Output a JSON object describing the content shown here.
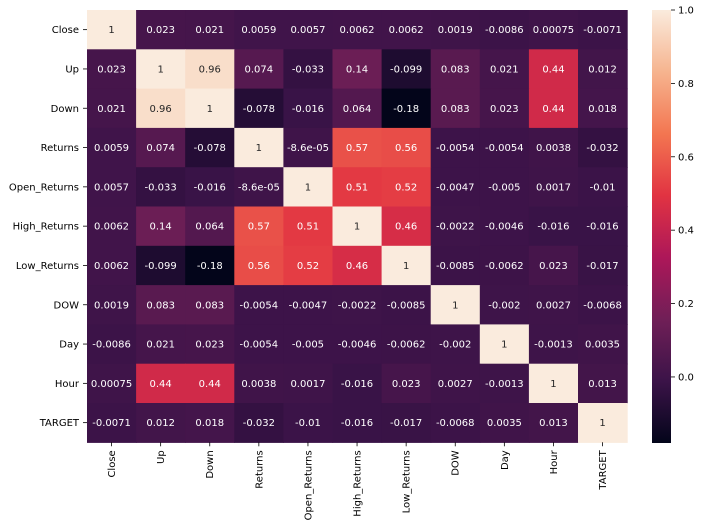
{
  "chart_data": {
    "type": "heatmap",
    "labels": [
      "Close",
      "Up",
      "Down",
      "Returns",
      "Open_Returns",
      "High_Returns",
      "Low_Returns",
      "DOW",
      "Day",
      "Hour",
      "TARGET"
    ],
    "matrix": [
      [
        "1",
        "0.023",
        "0.021",
        "0.0059",
        "0.0057",
        "0.0062",
        "0.0062",
        "0.0019",
        "-0.0086",
        "0.00075",
        "-0.0071"
      ],
      [
        "0.023",
        "1",
        "0.96",
        "0.074",
        "-0.033",
        "0.14",
        "-0.099",
        "0.083",
        "0.021",
        "0.44",
        "0.012"
      ],
      [
        "0.021",
        "0.96",
        "1",
        "-0.078",
        "-0.016",
        "0.064",
        "-0.18",
        "0.083",
        "0.023",
        "0.44",
        "0.018"
      ],
      [
        "0.0059",
        "0.074",
        "-0.078",
        "1",
        "-8.6e-05",
        "0.57",
        "0.56",
        "-0.0054",
        "-0.0054",
        "0.0038",
        "-0.032"
      ],
      [
        "0.0057",
        "-0.033",
        "-0.016",
        "-8.6e-05",
        "1",
        "0.51",
        "0.52",
        "-0.0047",
        "-0.005",
        "0.0017",
        "-0.01"
      ],
      [
        "0.0062",
        "0.14",
        "0.064",
        "0.57",
        "0.51",
        "1",
        "0.46",
        "-0.0022",
        "-0.0046",
        "-0.016",
        "-0.016"
      ],
      [
        "0.0062",
        "-0.099",
        "-0.18",
        "0.56",
        "0.52",
        "0.46",
        "1",
        "-0.0085",
        "-0.0062",
        "0.023",
        "-0.017"
      ],
      [
        "0.0019",
        "0.083",
        "0.083",
        "-0.0054",
        "-0.0047",
        "-0.0022",
        "-0.0085",
        "1",
        "-0.002",
        "0.0027",
        "-0.0068"
      ],
      [
        "-0.0086",
        "0.021",
        "0.023",
        "-0.0054",
        "-0.005",
        "-0.0046",
        "-0.0062",
        "-0.002",
        "1",
        "-0.0013",
        "0.0035"
      ],
      [
        "0.00075",
        "0.44",
        "0.44",
        "0.0038",
        "0.0017",
        "-0.016",
        "0.023",
        "0.0027",
        "-0.0013",
        "1",
        "0.013"
      ],
      [
        "-0.0071",
        "0.012",
        "0.018",
        "-0.032",
        "-0.01",
        "-0.016",
        "-0.017",
        "-0.0068",
        "0.0035",
        "0.013",
        "1"
      ]
    ],
    "vmin": -0.18,
    "vmax": 1.0,
    "colorbar_ticks": [
      "0.0",
      "0.2",
      "0.4",
      "0.6",
      "0.8",
      "1.0"
    ],
    "colormap_stops": [
      "#03051a",
      "#3b1348",
      "#701f57",
      "#ad1759",
      "#e13342",
      "#f37651",
      "#f6b48f",
      "#faebdd"
    ],
    "grid": false,
    "colorbar_position": "right"
  }
}
